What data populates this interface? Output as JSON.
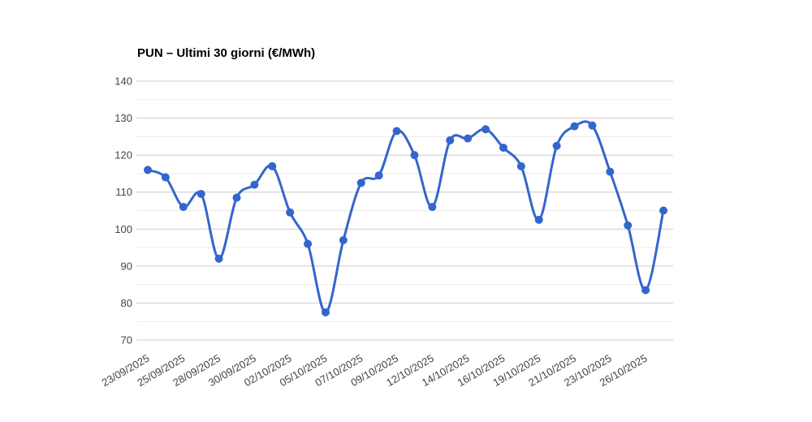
{
  "chart_data": {
    "type": "line",
    "title": "PUN – Ultimi 30 giorni (€/MWh)",
    "xlabel": "",
    "ylabel": "",
    "ylim": [
      70,
      140
    ],
    "y_major_ticks": [
      140,
      130,
      120,
      110,
      100,
      90,
      80,
      70
    ],
    "y_minor_gridlines": [
      135,
      125,
      115,
      105,
      95,
      85,
      75
    ],
    "x_tick_labels": [
      "23/09/2025",
      "25/09/2025",
      "28/09/2025",
      "30/09/2025",
      "02/10/2025",
      "05/10/2025",
      "07/10/2025",
      "09/10/2025",
      "12/10/2025",
      "14/10/2025",
      "16/10/2025",
      "19/10/2025",
      "21/10/2025",
      "23/10/2025",
      "26/10/2025"
    ],
    "x_tick_indices": [
      0,
      2,
      4,
      6,
      8,
      10,
      12,
      14,
      16,
      18,
      20,
      22,
      24,
      26,
      28
    ],
    "values": [
      116,
      114,
      106,
      109.5,
      92,
      108.5,
      112,
      117,
      104.5,
      96,
      77.5,
      97,
      112.5,
      114.5,
      126.5,
      120,
      106,
      124,
      124.5,
      127,
      122,
      117,
      102.5,
      122.5,
      127.8,
      128,
      115.5,
      101,
      83.5,
      105
    ],
    "series_name": "PUN",
    "smooth": true,
    "grid": true,
    "legend_position": "none",
    "colors": {
      "series": "#3366cc",
      "grid_major": "#cccccc",
      "grid_minor": "#ebebeb",
      "axis_label": "#444444",
      "title": "#000000",
      "background": "#ffffff"
    }
  }
}
